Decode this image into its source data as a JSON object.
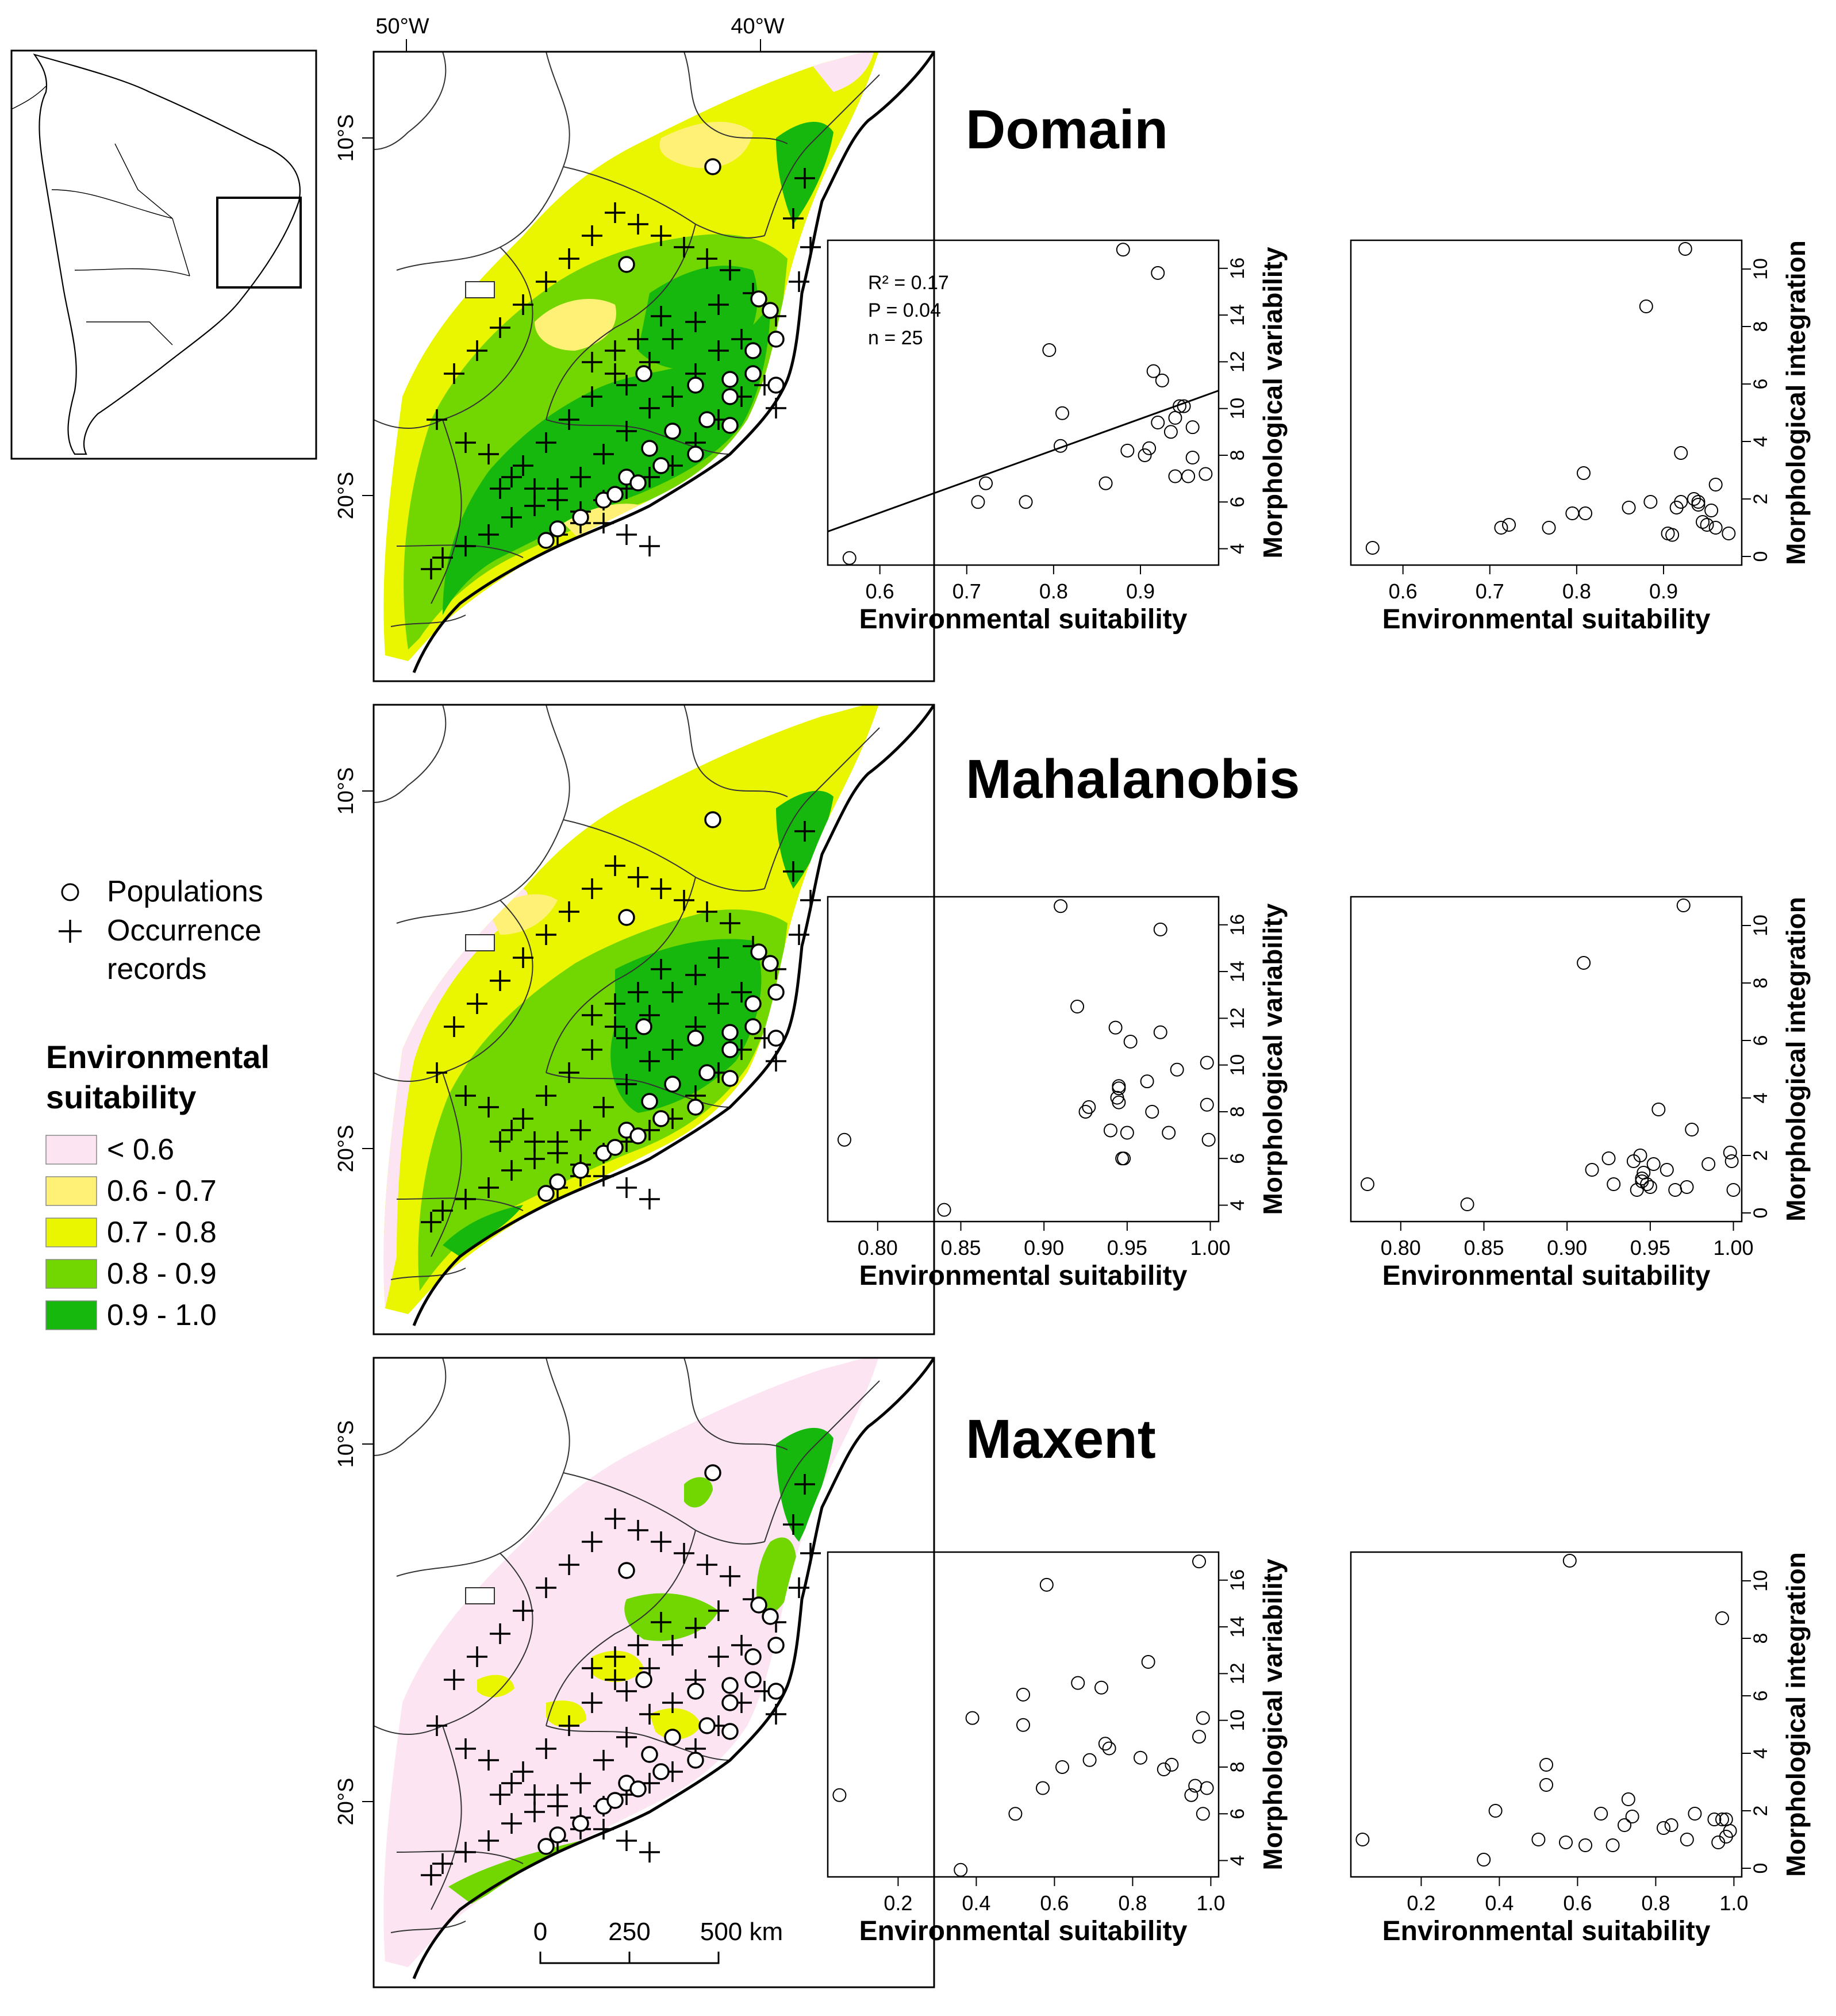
{
  "colors": {
    "lt06": "#fce4f2",
    "c06_07": "#fff176",
    "c07_08": "#eaf500",
    "c08_09": "#72d600",
    "c09_10": "#17b80d",
    "outline": "#000000",
    "border": "#333333",
    "point_fill": "#ffffff"
  },
  "map": {
    "lon_labels": [
      "50°W",
      "40°W"
    ],
    "lat_labels": [
      "10°S",
      "20°S"
    ],
    "scalebar": {
      "ticks": [
        "0",
        "250",
        "500 km"
      ]
    }
  },
  "legend": {
    "populations": "Populations",
    "occurrence": [
      "Occurrence",
      "records"
    ],
    "title": [
      "Environmental",
      "suitability"
    ],
    "classes": [
      "< 0.6",
      "0.6 - 0.7",
      "0.7 - 0.8",
      "0.8 - 0.9",
      "0.9 - 1.0"
    ],
    "class_colors": [
      "#fce4f2",
      "#fff176",
      "#eaf500",
      "#72d600",
      "#17b80d"
    ]
  },
  "models": [
    "Domain",
    "Mahalanobis",
    "Maxent"
  ],
  "chart_data": [
    {
      "type": "scatter",
      "model": "Domain",
      "xlabel": "Environmental suitability",
      "ylabel": "Morphological variability",
      "xlim": [
        0.54,
        0.99
      ],
      "xticks": [
        "0.6",
        "0.7",
        "0.8",
        "0.9"
      ],
      "ylim": [
        3.3,
        17.2
      ],
      "yticks": [
        "4",
        "6",
        "8",
        "10",
        "12",
        "14",
        "16"
      ],
      "annotation": [
        "R² = 0.17",
        "P = 0.04",
        "n = 25"
      ],
      "fit_line": {
        "intercept": -2.5,
        "slope": 13.4
      },
      "x": [
        0.565,
        0.713,
        0.722,
        0.768,
        0.795,
        0.81,
        0.808,
        0.86,
        0.88,
        0.885,
        0.905,
        0.91,
        0.915,
        0.92,
        0.92,
        0.925,
        0.935,
        0.94,
        0.945,
        0.955,
        0.96,
        0.95,
        0.96,
        0.975,
        0.94
      ],
      "y": [
        3.6,
        6.0,
        6.8,
        6.0,
        12.5,
        9.8,
        8.4,
        6.8,
        16.8,
        8.2,
        8.0,
        8.3,
        11.6,
        9.4,
        15.8,
        11.2,
        9.0,
        7.1,
        10.1,
        7.1,
        9.2,
        10.1,
        7.9,
        7.2,
        9.6
      ]
    },
    {
      "type": "scatter",
      "model": "Domain",
      "xlabel": "Environmental suitability",
      "ylabel": "Morphological integration",
      "xlim": [
        0.54,
        0.99
      ],
      "xticks": [
        "0.6",
        "0.7",
        "0.8",
        "0.9"
      ],
      "ylim": [
        -0.3,
        11.0
      ],
      "yticks": [
        "0",
        "2",
        "4",
        "6",
        "8",
        "10"
      ],
      "x": [
        0.565,
        0.713,
        0.722,
        0.768,
        0.795,
        0.81,
        0.808,
        0.86,
        0.88,
        0.885,
        0.905,
        0.91,
        0.915,
        0.92,
        0.92,
        0.925,
        0.935,
        0.94,
        0.945,
        0.955,
        0.96,
        0.95,
        0.96,
        0.975,
        0.94
      ],
      "y": [
        0.3,
        1.0,
        1.1,
        1.0,
        1.5,
        1.5,
        2.9,
        1.7,
        8.7,
        1.9,
        0.8,
        0.75,
        1.7,
        1.9,
        3.6,
        10.7,
        2.0,
        1.9,
        1.2,
        1.6,
        2.5,
        1.1,
        1.0,
        0.8,
        1.8
      ]
    },
    {
      "type": "scatter",
      "model": "Mahalanobis",
      "xlabel": "Environmental suitability",
      "ylabel": "Morphological variability",
      "xlim": [
        0.77,
        1.005
      ],
      "xticks": [
        "0.80",
        "0.85",
        "0.90",
        "0.95",
        "1.00"
      ],
      "ylim": [
        3.3,
        17.2
      ],
      "yticks": [
        "4",
        "6",
        "8",
        "10",
        "12",
        "14",
        "16"
      ],
      "x": [
        0.78,
        0.84,
        0.91,
        0.92,
        0.925,
        0.927,
        0.94,
        0.943,
        0.945,
        0.945,
        0.947,
        0.948,
        0.95,
        0.952,
        0.962,
        0.965,
        0.97,
        0.97,
        0.975,
        0.98,
        0.998,
        0.998,
        0.999,
        0.945,
        0.944
      ],
      "y": [
        6.8,
        3.8,
        16.8,
        12.5,
        8.0,
        8.2,
        7.2,
        11.6,
        8.4,
        9.1,
        6.0,
        6.0,
        7.1,
        11.0,
        9.3,
        8.0,
        11.4,
        15.8,
        7.1,
        9.8,
        10.1,
        8.3,
        6.8,
        9.0,
        8.6
      ]
    },
    {
      "type": "scatter",
      "model": "Mahalanobis",
      "xlabel": "Environmental suitability",
      "ylabel": "Morphological integration",
      "xlim": [
        0.77,
        1.005
      ],
      "xticks": [
        "0.80",
        "0.85",
        "0.90",
        "0.95",
        "1.00"
      ],
      "ylim": [
        -0.3,
        11.0
      ],
      "yticks": [
        "0",
        "2",
        "4",
        "6",
        "8",
        "10"
      ],
      "x": [
        0.78,
        0.84,
        0.91,
        0.915,
        0.925,
        0.928,
        0.94,
        0.942,
        0.944,
        0.945,
        0.946,
        0.948,
        0.95,
        0.952,
        0.955,
        0.96,
        0.965,
        0.97,
        0.972,
        0.975,
        0.985,
        0.998,
        0.999,
        1.0,
        0.945
      ],
      "y": [
        1.0,
        0.3,
        8.7,
        1.5,
        1.9,
        1.0,
        1.8,
        0.8,
        2.0,
        1.1,
        1.4,
        1.0,
        0.9,
        1.7,
        3.6,
        1.5,
        0.8,
        10.7,
        0.9,
        2.9,
        1.7,
        2.1,
        1.8,
        0.8,
        1.2
      ]
    },
    {
      "type": "scatter",
      "model": "Maxent",
      "xlabel": "Environmental suitability",
      "ylabel": "Morphological variability",
      "xlim": [
        0.02,
        1.02
      ],
      "xticks": [
        "0.2",
        "0.4",
        "0.6",
        "0.8",
        "1.0"
      ],
      "ylim": [
        3.3,
        17.2
      ],
      "yticks": [
        "4",
        "6",
        "8",
        "10",
        "12",
        "14",
        "16"
      ],
      "x": [
        0.05,
        0.36,
        0.39,
        0.5,
        0.52,
        0.52,
        0.57,
        0.58,
        0.62,
        0.66,
        0.69,
        0.72,
        0.73,
        0.74,
        0.82,
        0.84,
        0.88,
        0.9,
        0.95,
        0.96,
        0.97,
        0.97,
        0.98,
        0.99,
        0.98
      ],
      "y": [
        6.8,
        3.6,
        10.1,
        6.0,
        9.8,
        11.1,
        7.1,
        15.8,
        8.0,
        11.6,
        8.3,
        11.4,
        9.0,
        8.8,
        8.4,
        12.5,
        7.9,
        8.1,
        6.8,
        7.2,
        9.3,
        16.8,
        6.0,
        7.1,
        10.1
      ]
    },
    {
      "type": "scatter",
      "model": "Maxent",
      "xlabel": "Environmental suitability",
      "ylabel": "Morphological integration",
      "xlim": [
        0.02,
        1.02
      ],
      "xticks": [
        "0.2",
        "0.4",
        "0.6",
        "0.8",
        "1.0"
      ],
      "ylim": [
        -0.3,
        11.0
      ],
      "yticks": [
        "0",
        "2",
        "4",
        "6",
        "8",
        "10"
      ],
      "x": [
        0.05,
        0.36,
        0.39,
        0.5,
        0.52,
        0.52,
        0.57,
        0.58,
        0.62,
        0.66,
        0.69,
        0.72,
        0.73,
        0.74,
        0.82,
        0.84,
        0.88,
        0.9,
        0.95,
        0.96,
        0.97,
        0.97,
        0.98,
        0.99,
        0.98
      ],
      "y": [
        1.0,
        0.3,
        2.0,
        1.0,
        3.6,
        2.9,
        0.9,
        10.7,
        0.8,
        1.9,
        0.8,
        1.5,
        2.4,
        1.8,
        1.4,
        1.5,
        1.0,
        1.9,
        1.7,
        0.9,
        1.7,
        8.7,
        1.1,
        1.3,
        1.7
      ]
    }
  ]
}
